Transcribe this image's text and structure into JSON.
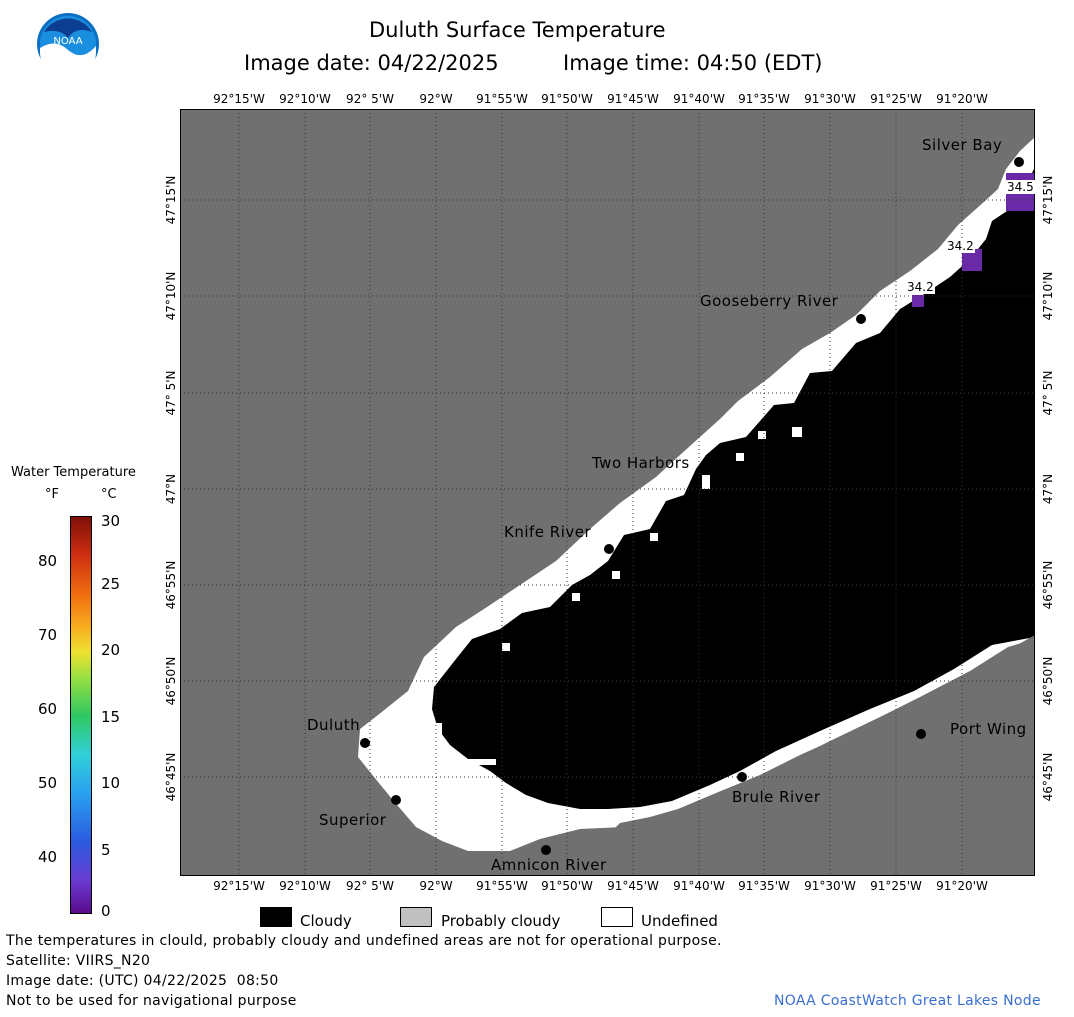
{
  "title": "Duluth Surface Temperature",
  "subtitle": {
    "date": "Image date: 04/22/2025",
    "time": "Image time: 04:50 (EDT)"
  },
  "logo": {
    "text": "NOAA",
    "icon": "noaa-logo-icon"
  },
  "x_ticks": [
    "92°15'W",
    "92°10'W",
    "92° 5'W",
    "92°W",
    "91°55'W",
    "91°50'W",
    "91°45'W",
    "91°40'W",
    "91°35'W",
    "91°30'W",
    "91°25'W",
    "91°20'W"
  ],
  "y_ticks": [
    "47°15'N",
    "47°10'N",
    "47° 5'N",
    "47°N",
    "46°55'N",
    "46°50'N",
    "46°45'N"
  ],
  "places": {
    "silver_bay": "Silver Bay",
    "gooseberry_river": "Gooseberry River",
    "two_harbors": "Two Harbors",
    "knife_river": "Knife River",
    "duluth": "Duluth",
    "superior": "Superior",
    "amnicon_river": "Amnicon River",
    "brule_river": "Brule River",
    "port_wing": "Port Wing"
  },
  "temp_labels": [
    "34.5",
    "34.2",
    "34.2"
  ],
  "colorbar": {
    "title": "Water Temperature",
    "unit_f": "°F",
    "unit_c": "°C",
    "f_ticks": [
      "80",
      "70",
      "60",
      "50",
      "40"
    ],
    "c_ticks": [
      "30",
      "25",
      "20",
      "15",
      "10",
      "5",
      "0"
    ],
    "range_c": [
      0,
      30
    ]
  },
  "legend": {
    "cloudy": "Cloudy",
    "probably_cloudy": "Probably cloudy",
    "undefined": "Undefined"
  },
  "colors": {
    "land": "#707070",
    "cloud": "#000000",
    "undefined": "#ffffff",
    "probably_cloudy": "#c0c0c0",
    "water_cold": "#6a2aa8",
    "credit": "#3a6fd0"
  },
  "footer": {
    "note": "The temperatures in clould, probably cloudy and undefined areas are not for operational purpose.",
    "satellite": "Satellite: VIIRS_N20",
    "image_date_utc": "Image date: (UTC) 04/22/2025  08:50",
    "disclaimer": "Not to be used for navigational purpose",
    "credit": "NOAA CoastWatch Great Lakes Node"
  }
}
